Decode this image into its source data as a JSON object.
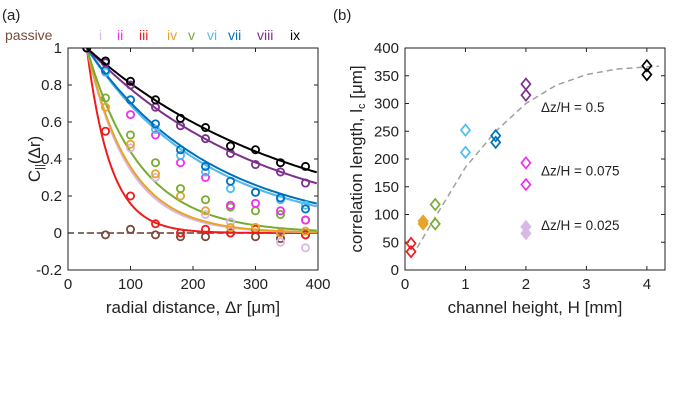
{
  "chart_data": [
    {
      "panel": "(a)",
      "type": "line",
      "xlabel": "radial distance, Δr [μm]",
      "ylabel": "C",
      "ylabel_sub": "||",
      "ylabel_tail": "(Δr)",
      "xlim": [
        0,
        400
      ],
      "ylim": [
        -0.2,
        1
      ],
      "xticks": [
        0,
        100,
        200,
        300,
        400
      ],
      "yticks": [
        -0.2,
        0,
        0.2,
        0.4,
        0.6,
        0.8,
        1
      ],
      "ytick_labels": [
        "-0.2",
        "0",
        "0.2",
        "0.4",
        "0.6",
        "0.8",
        "1"
      ],
      "legend": [
        {
          "label": "passive",
          "color": "#7a4a3a"
        },
        {
          "label": "i",
          "color": "#d8b8e8"
        },
        {
          "label": "ii",
          "color": "#ee30ee"
        },
        {
          "label": "iii",
          "color": "#ee1c1c"
        },
        {
          "label": "iv",
          "color": "#e8a428"
        },
        {
          "label": "v",
          "color": "#77ac30"
        },
        {
          "label": "vi",
          "color": "#4dbeee"
        },
        {
          "label": "vii",
          "color": "#0072bd"
        },
        {
          "label": "viii",
          "color": "#7e2f8e"
        },
        {
          "label": "ix",
          "color": "#000000"
        }
      ],
      "series": [
        {
          "name": "passive",
          "color": "#7a4a3a",
          "dashed_fit": true,
          "fit_len": 0,
          "x": [
            30,
            60,
            100,
            140,
            180,
            220,
            260,
            300,
            340,
            380
          ],
          "y": [
            1,
            -0.01,
            0.02,
            -0.01,
            -0.02,
            -0.02,
            0.0,
            -0.02,
            -0.03,
            -0.01
          ]
        },
        {
          "name": "iii",
          "color": "#ee1c1c",
          "fit_len": 38,
          "x": [
            30,
            60,
            100,
            140,
            180,
            220,
            260,
            300,
            340,
            380
          ],
          "y": [
            1,
            0.55,
            0.2,
            0.05,
            0.0,
            0.02,
            0.0,
            0.02,
            0.0,
            -0.01
          ]
        },
        {
          "name": "i",
          "color": "#d8b8e8",
          "fit_len": 65,
          "x": [
            30,
            60,
            100,
            140,
            180,
            220,
            260,
            300,
            340,
            380
          ],
          "y": [
            1,
            0.68,
            0.46,
            0.3,
            0.2,
            0.1,
            0.06,
            0.03,
            -0.05,
            -0.08
          ]
        },
        {
          "name": "iv",
          "color": "#e8a428",
          "fit_len": 68,
          "x": [
            30,
            60,
            100,
            140,
            180,
            220,
            260,
            300,
            340,
            380
          ],
          "y": [
            1,
            0.68,
            0.48,
            0.32,
            0.2,
            0.12,
            0.03,
            0.03,
            0.0,
            0.01
          ]
        },
        {
          "name": "v",
          "color": "#77ac30",
          "fit_len": 85,
          "x": [
            30,
            60,
            100,
            140,
            180,
            220,
            260,
            300,
            340,
            380
          ],
          "y": [
            1,
            0.73,
            0.53,
            0.38,
            0.24,
            0.18,
            0.14,
            0.12,
            0.1,
            0.07
          ]
        },
        {
          "name": "ii",
          "color": "#ee30ee",
          "dashed_fit": true,
          "fit_len": 190,
          "x": [
            30,
            60,
            100,
            140,
            180,
            220,
            260,
            300,
            340,
            380
          ],
          "y": [
            1,
            0.87,
            0.64,
            0.53,
            0.38,
            0.3,
            0.15,
            0.16,
            0.12,
            0.07
          ]
        },
        {
          "name": "vi",
          "color": "#4dbeee",
          "fit_len": 190,
          "x": [
            30,
            60,
            100,
            140,
            180,
            220,
            260,
            300,
            340,
            380
          ],
          "y": [
            1,
            0.87,
            0.72,
            0.56,
            0.42,
            0.33,
            0.24,
            0.22,
            0.18,
            0.15
          ]
        },
        {
          "name": "vii",
          "color": "#0072bd",
          "fit_len": 200,
          "x": [
            30,
            60,
            100,
            140,
            180,
            220,
            260,
            300,
            340,
            380
          ],
          "y": [
            1,
            0.88,
            0.72,
            0.59,
            0.45,
            0.36,
            0.28,
            0.22,
            0.19,
            0.13
          ]
        },
        {
          "name": "viii",
          "color": "#7e2f8e",
          "fit_len": 280,
          "x": [
            30,
            60,
            100,
            140,
            180,
            220,
            260,
            300,
            340,
            380
          ],
          "y": [
            1,
            0.92,
            0.8,
            0.68,
            0.58,
            0.51,
            0.43,
            0.37,
            0.33,
            0.27
          ]
        },
        {
          "name": "ix",
          "color": "#000000",
          "fit_len": 330,
          "x": [
            30,
            60,
            100,
            140,
            180,
            220,
            260,
            300,
            340,
            380
          ],
          "y": [
            1,
            0.93,
            0.82,
            0.72,
            0.62,
            0.57,
            0.47,
            0.45,
            0.38,
            0.36
          ]
        }
      ]
    },
    {
      "panel": "(b)",
      "type": "scatter",
      "xlabel": "channel height, H [mm]",
      "ylabel": "correlation length, l",
      "ylabel_sub": "c",
      "ylabel_tail": " [μm]",
      "xlim": [
        0,
        4.3
      ],
      "ylim": [
        0,
        400
      ],
      "xticks": [
        0,
        1,
        2,
        3,
        4
      ],
      "yticks": [
        0,
        50,
        100,
        150,
        200,
        250,
        300,
        350,
        400
      ],
      "annotations": [
        {
          "text": "Δz/H = 0.5",
          "x": 2.25,
          "y": 285
        },
        {
          "text": "Δz/H = 0.075",
          "x": 2.25,
          "y": 170
        },
        {
          "text": "Δz/H = 0.025",
          "x": 2.25,
          "y": 72
        }
      ],
      "fit_curve": {
        "style": "dashed",
        "color": "#a0a0a0",
        "x": [
          0.2,
          0.5,
          1.0,
          1.5,
          2.0,
          2.5,
          3.0,
          3.5,
          4.0,
          4.2
        ],
        "y": [
          40,
          95,
          185,
          250,
          300,
          333,
          352,
          362,
          366,
          367
        ]
      },
      "series": [
        {
          "name": "iii",
          "color": "#ee1c1c",
          "points": [
            [
              0.1,
              48
            ],
            [
              0.1,
              33
            ]
          ]
        },
        {
          "name": "iv",
          "color": "#e8a428",
          "filled": true,
          "points": [
            [
              0.3,
              88
            ],
            [
              0.3,
              83
            ]
          ]
        },
        {
          "name": "v",
          "color": "#77ac30",
          "points": [
            [
              0.5,
              118
            ],
            [
              0.5,
              83
            ]
          ]
        },
        {
          "name": "vi",
          "color": "#4dbeee",
          "points": [
            [
              1.0,
              252
            ],
            [
              1.0,
              212
            ]
          ]
        },
        {
          "name": "vii",
          "color": "#0072bd",
          "points": [
            [
              1.5,
              242
            ],
            [
              1.5,
              230
            ]
          ]
        },
        {
          "name": "viii",
          "color": "#7e2f8e",
          "points": [
            [
              2.0,
              335
            ],
            [
              2.0,
              315
            ]
          ]
        },
        {
          "name": "ix",
          "color": "#000000",
          "points": [
            [
              4.0,
              368
            ],
            [
              4.0,
              352
            ]
          ]
        },
        {
          "name": "ii",
          "color": "#ee30ee",
          "points": [
            [
              2.0,
              193
            ],
            [
              2.0,
              154
            ]
          ]
        },
        {
          "name": "i",
          "color": "#d8b8e8",
          "filled": true,
          "points": [
            [
              2.0,
              78
            ],
            [
              2.0,
              66
            ]
          ]
        }
      ]
    }
  ]
}
